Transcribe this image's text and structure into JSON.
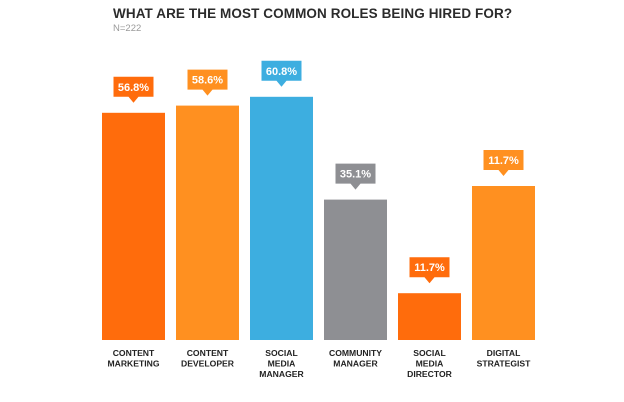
{
  "header": {
    "title": "WHAT ARE THE MOST COMMON ROLES BEING HIRED FOR?",
    "subtitle": "N=222"
  },
  "chart_data": {
    "type": "bar",
    "title": "WHAT ARE THE MOST COMMON ROLES BEING HIRED FOR?",
    "subtitle": "N=222",
    "xlabel": "",
    "ylabel": "",
    "categories": [
      [
        "CONTENT",
        "MARKETING"
      ],
      [
        "CONTENT",
        "DEVELOPER"
      ],
      [
        "SOCIAL",
        "MEDIA",
        "MANAGER"
      ],
      [
        "COMMUNITY",
        "MANAGER"
      ],
      [
        "SOCIAL",
        "MEDIA",
        "DIRECTOR"
      ],
      [
        "DIGITAL",
        "STRATEGIST"
      ]
    ],
    "values": [
      56.8,
      58.6,
      60.8,
      35.1,
      11.7,
      11.7
    ],
    "value_labels": [
      "56.8%",
      "58.6%",
      "60.8%",
      "35.1%",
      "11.7%",
      "11.7%"
    ],
    "displayed_heights": [
      56.8,
      58.6,
      60.8,
      35.1,
      11.7,
      38.5
    ],
    "colors": [
      "#ff6c0c",
      "#ff9020",
      "#3daee0",
      "#8e8f93",
      "#ff6c0c",
      "#ff9020"
    ],
    "grid": false,
    "legend": "none"
  }
}
